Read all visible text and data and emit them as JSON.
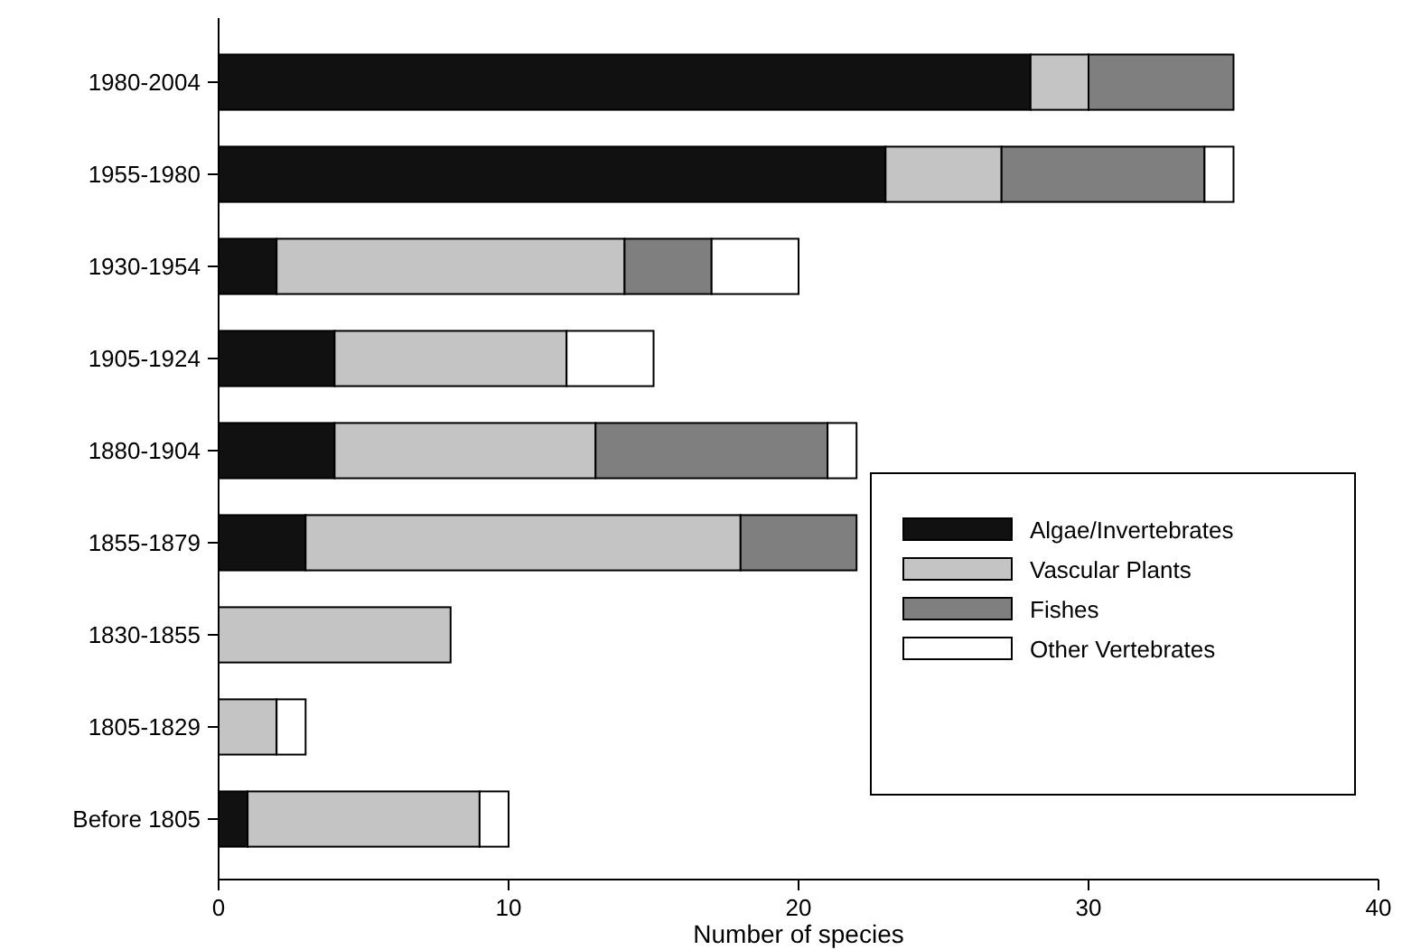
{
  "chart_data": {
    "type": "bar",
    "orientation": "horizontal",
    "stacked": true,
    "xlabel": "Number of species",
    "categories": [
      "1980-2004",
      "1955-1980",
      "1930-1954",
      "1905-1924",
      "1880-1904",
      "1855-1879",
      "1830-1855",
      "1805-1829",
      "Before 1805"
    ],
    "series": [
      {
        "name": "Algae/Invertebrates",
        "color": "#111111",
        "values": [
          28,
          23,
          2,
          4,
          4,
          3,
          0,
          0,
          1
        ]
      },
      {
        "name": "Vascular Plants",
        "color": "#c4c4c4",
        "values": [
          2,
          4,
          12,
          8,
          9,
          15,
          8,
          2,
          8
        ]
      },
      {
        "name": "Fishes",
        "color": "#7f7f7f",
        "values": [
          5,
          7,
          3,
          0,
          8,
          4,
          0,
          0,
          0
        ]
      },
      {
        "name": "Other Vertebrates",
        "color": "#ffffff",
        "values": [
          0,
          1,
          3,
          3,
          1,
          0,
          0,
          1,
          1
        ]
      }
    ],
    "xlim": [
      0,
      40
    ],
    "xticks": [
      0,
      10,
      20,
      30,
      40
    ],
    "grid": false,
    "legend": "bottom right"
  }
}
